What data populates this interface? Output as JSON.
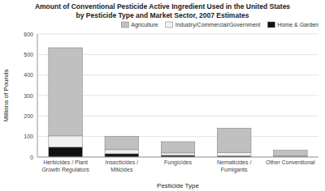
{
  "chart_data": {
    "type": "bar",
    "stacked": true,
    "title": "Amount of Conventional Pesticide Active Ingredient Used in the United States",
    "subtitle": "by Pesticide Type and Market Sector, 2007 Estimates",
    "xlabel": "Pesticide Type",
    "ylabel": "Millions of Pounds",
    "categories": [
      "Herbicides / Plant\nGrowth Regulators",
      "Insecticides /\nMiticides",
      "Fungicides",
      "Nematicides /\nFumigants",
      "Other Conventional"
    ],
    "series": [
      {
        "name": "Home & Garden",
        "color": "#111111",
        "values": [
          48,
          16,
          8,
          5,
          2
        ]
      },
      {
        "name": "Industry/Commercial/Government",
        "color": "#f0f0f0",
        "values": [
          55,
          20,
          12,
          18,
          3
        ]
      },
      {
        "name": "Agriculture",
        "color": "#c0c0c0",
        "values": [
          430,
          65,
          55,
          118,
          28
        ]
      }
    ],
    "ylim": [
      0,
      600
    ],
    "yticks": [
      0,
      100,
      200,
      300,
      400,
      500,
      600
    ],
    "grid": true,
    "legend": "upper right"
  }
}
